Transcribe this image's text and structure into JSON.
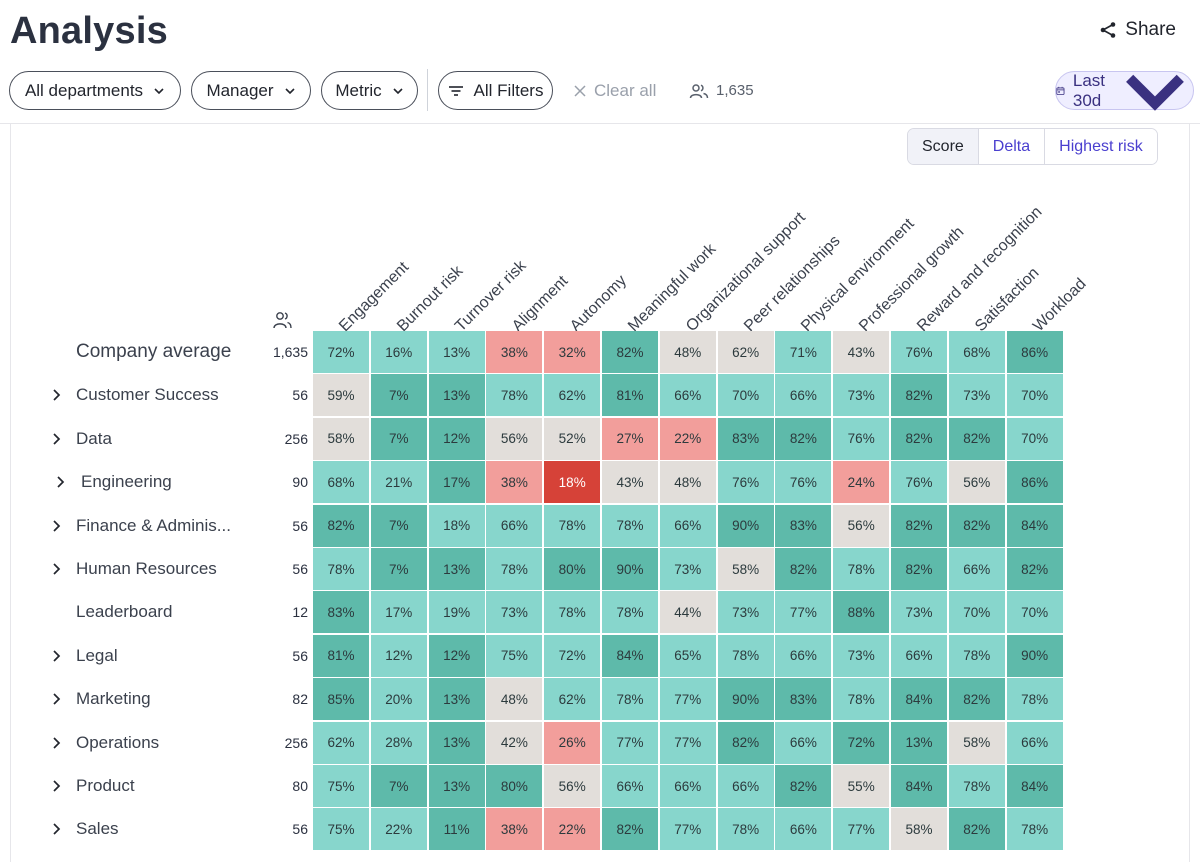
{
  "page": {
    "title": "Analysis",
    "share_label": "Share"
  },
  "filters": {
    "departments": "All departments",
    "manager": "Manager",
    "metric": "Metric",
    "all_filters": "All Filters",
    "clear_all": "Clear all",
    "respondents": "1,635",
    "date_range": "Last 30d"
  },
  "view_toggle": {
    "options": [
      "Score",
      "Delta",
      "Highest risk"
    ],
    "selected": "Score"
  },
  "colors": {
    "dark_teal": "#5ebaaa",
    "teal": "#87d6cc",
    "neutral": "#e2deda",
    "pink": "#f29e9b",
    "red": "#d64238"
  },
  "heatmap": {
    "columns": [
      "Engagement",
      "Burnout risk",
      "Turnover risk",
      "Alignment",
      "Autonomy",
      "Meaningful work",
      "Organizational support",
      "Peer relationships",
      "Physical environment",
      "Professional growth",
      "Reward and recognition",
      "Satisfaction",
      "Workload"
    ],
    "rows": [
      {
        "label": "Company average",
        "count": "1,635",
        "expandable": false,
        "values": [
          "72%",
          "16%",
          "13%",
          "38%",
          "32%",
          "82%",
          "48%",
          "62%",
          "71%",
          "43%",
          "76%",
          "68%",
          "86%"
        ],
        "levels": [
          "teal",
          "teal",
          "teal",
          "pink",
          "pink",
          "dark_teal",
          "neutral",
          "neutral",
          "teal",
          "neutral",
          "teal",
          "teal",
          "dark_teal"
        ]
      },
      {
        "label": "Customer Success",
        "count": "56",
        "expandable": true,
        "values": [
          "59%",
          "7%",
          "13%",
          "78%",
          "62%",
          "81%",
          "66%",
          "70%",
          "66%",
          "73%",
          "82%",
          "73%",
          "70%"
        ],
        "levels": [
          "neutral",
          "dark_teal",
          "dark_teal",
          "teal",
          "teal",
          "dark_teal",
          "teal",
          "teal",
          "teal",
          "teal",
          "dark_teal",
          "teal",
          "teal"
        ]
      },
      {
        "label": "Data",
        "count": "256",
        "expandable": true,
        "values": [
          "58%",
          "7%",
          "12%",
          "56%",
          "52%",
          "27%",
          "22%",
          "83%",
          "82%",
          "76%",
          "82%",
          "82%",
          "70%"
        ],
        "levels": [
          "neutral",
          "dark_teal",
          "dark_teal",
          "neutral",
          "neutral",
          "pink",
          "pink",
          "dark_teal",
          "dark_teal",
          "teal",
          "dark_teal",
          "dark_teal",
          "teal"
        ]
      },
      {
        "label": "Engineering",
        "count": "90",
        "expandable": true,
        "values": [
          "68%",
          "21%",
          "17%",
          "38%",
          "18%",
          "43%",
          "48%",
          "76%",
          "76%",
          "24%",
          "76%",
          "56%",
          "86%"
        ],
        "levels": [
          "teal",
          "teal",
          "dark_teal",
          "pink",
          "red",
          "neutral",
          "neutral",
          "teal",
          "teal",
          "pink",
          "teal",
          "neutral",
          "dark_teal"
        ]
      },
      {
        "label": "Finance & Adminis...",
        "count": "56",
        "expandable": true,
        "values": [
          "82%",
          "7%",
          "18%",
          "66%",
          "78%",
          "78%",
          "66%",
          "90%",
          "83%",
          "56%",
          "82%",
          "82%",
          "84%"
        ],
        "levels": [
          "dark_teal",
          "dark_teal",
          "teal",
          "teal",
          "teal",
          "teal",
          "teal",
          "dark_teal",
          "dark_teal",
          "neutral",
          "dark_teal",
          "dark_teal",
          "dark_teal"
        ]
      },
      {
        "label": "Human Resources",
        "count": "56",
        "expandable": true,
        "values": [
          "78%",
          "7%",
          "13%",
          "78%",
          "80%",
          "90%",
          "73%",
          "58%",
          "82%",
          "78%",
          "82%",
          "66%",
          "82%"
        ],
        "levels": [
          "teal",
          "dark_teal",
          "dark_teal",
          "teal",
          "dark_teal",
          "dark_teal",
          "teal",
          "neutral",
          "dark_teal",
          "teal",
          "dark_teal",
          "teal",
          "dark_teal"
        ]
      },
      {
        "label": "Leaderboard",
        "count": "12",
        "expandable": false,
        "values": [
          "83%",
          "17%",
          "19%",
          "73%",
          "78%",
          "78%",
          "44%",
          "73%",
          "77%",
          "88%",
          "73%",
          "70%",
          "70%"
        ],
        "levels": [
          "dark_teal",
          "teal",
          "teal",
          "teal",
          "teal",
          "teal",
          "neutral",
          "teal",
          "teal",
          "dark_teal",
          "teal",
          "teal",
          "teal"
        ]
      },
      {
        "label": "Legal",
        "count": "56",
        "expandable": true,
        "values": [
          "81%",
          "12%",
          "12%",
          "75%",
          "72%",
          "84%",
          "65%",
          "78%",
          "66%",
          "73%",
          "66%",
          "78%",
          "90%"
        ],
        "levels": [
          "dark_teal",
          "teal",
          "dark_teal",
          "teal",
          "teal",
          "dark_teal",
          "teal",
          "teal",
          "teal",
          "teal",
          "teal",
          "teal",
          "dark_teal"
        ]
      },
      {
        "label": "Marketing",
        "count": "82",
        "expandable": true,
        "values": [
          "85%",
          "20%",
          "13%",
          "48%",
          "62%",
          "78%",
          "77%",
          "90%",
          "83%",
          "78%",
          "84%",
          "82%",
          "78%"
        ],
        "levels": [
          "dark_teal",
          "teal",
          "dark_teal",
          "neutral",
          "teal",
          "teal",
          "teal",
          "dark_teal",
          "dark_teal",
          "teal",
          "dark_teal",
          "dark_teal",
          "teal"
        ]
      },
      {
        "label": "Operations",
        "count": "256",
        "expandable": true,
        "values": [
          "62%",
          "28%",
          "13%",
          "42%",
          "26%",
          "77%",
          "77%",
          "82%",
          "66%",
          "72%",
          "13%",
          "58%",
          "66%"
        ],
        "levels": [
          "teal",
          "teal",
          "dark_teal",
          "neutral",
          "pink",
          "teal",
          "teal",
          "dark_teal",
          "teal",
          "dark_teal",
          "dark_teal",
          "neutral",
          "teal"
        ]
      },
      {
        "label": "Product",
        "count": "80",
        "expandable": true,
        "values": [
          "75%",
          "7%",
          "13%",
          "80%",
          "56%",
          "66%",
          "66%",
          "66%",
          "82%",
          "55%",
          "84%",
          "78%",
          "84%"
        ],
        "levels": [
          "teal",
          "dark_teal",
          "dark_teal",
          "dark_teal",
          "neutral",
          "teal",
          "teal",
          "teal",
          "dark_teal",
          "neutral",
          "dark_teal",
          "teal",
          "dark_teal"
        ]
      },
      {
        "label": "Sales",
        "count": "56",
        "expandable": true,
        "values": [
          "75%",
          "22%",
          "11%",
          "38%",
          "22%",
          "82%",
          "77%",
          "78%",
          "66%",
          "77%",
          "58%",
          "82%",
          "78%"
        ],
        "levels": [
          "teal",
          "teal",
          "dark_teal",
          "pink",
          "pink",
          "dark_teal",
          "teal",
          "teal",
          "teal",
          "teal",
          "neutral",
          "dark_teal",
          "teal"
        ]
      }
    ]
  }
}
